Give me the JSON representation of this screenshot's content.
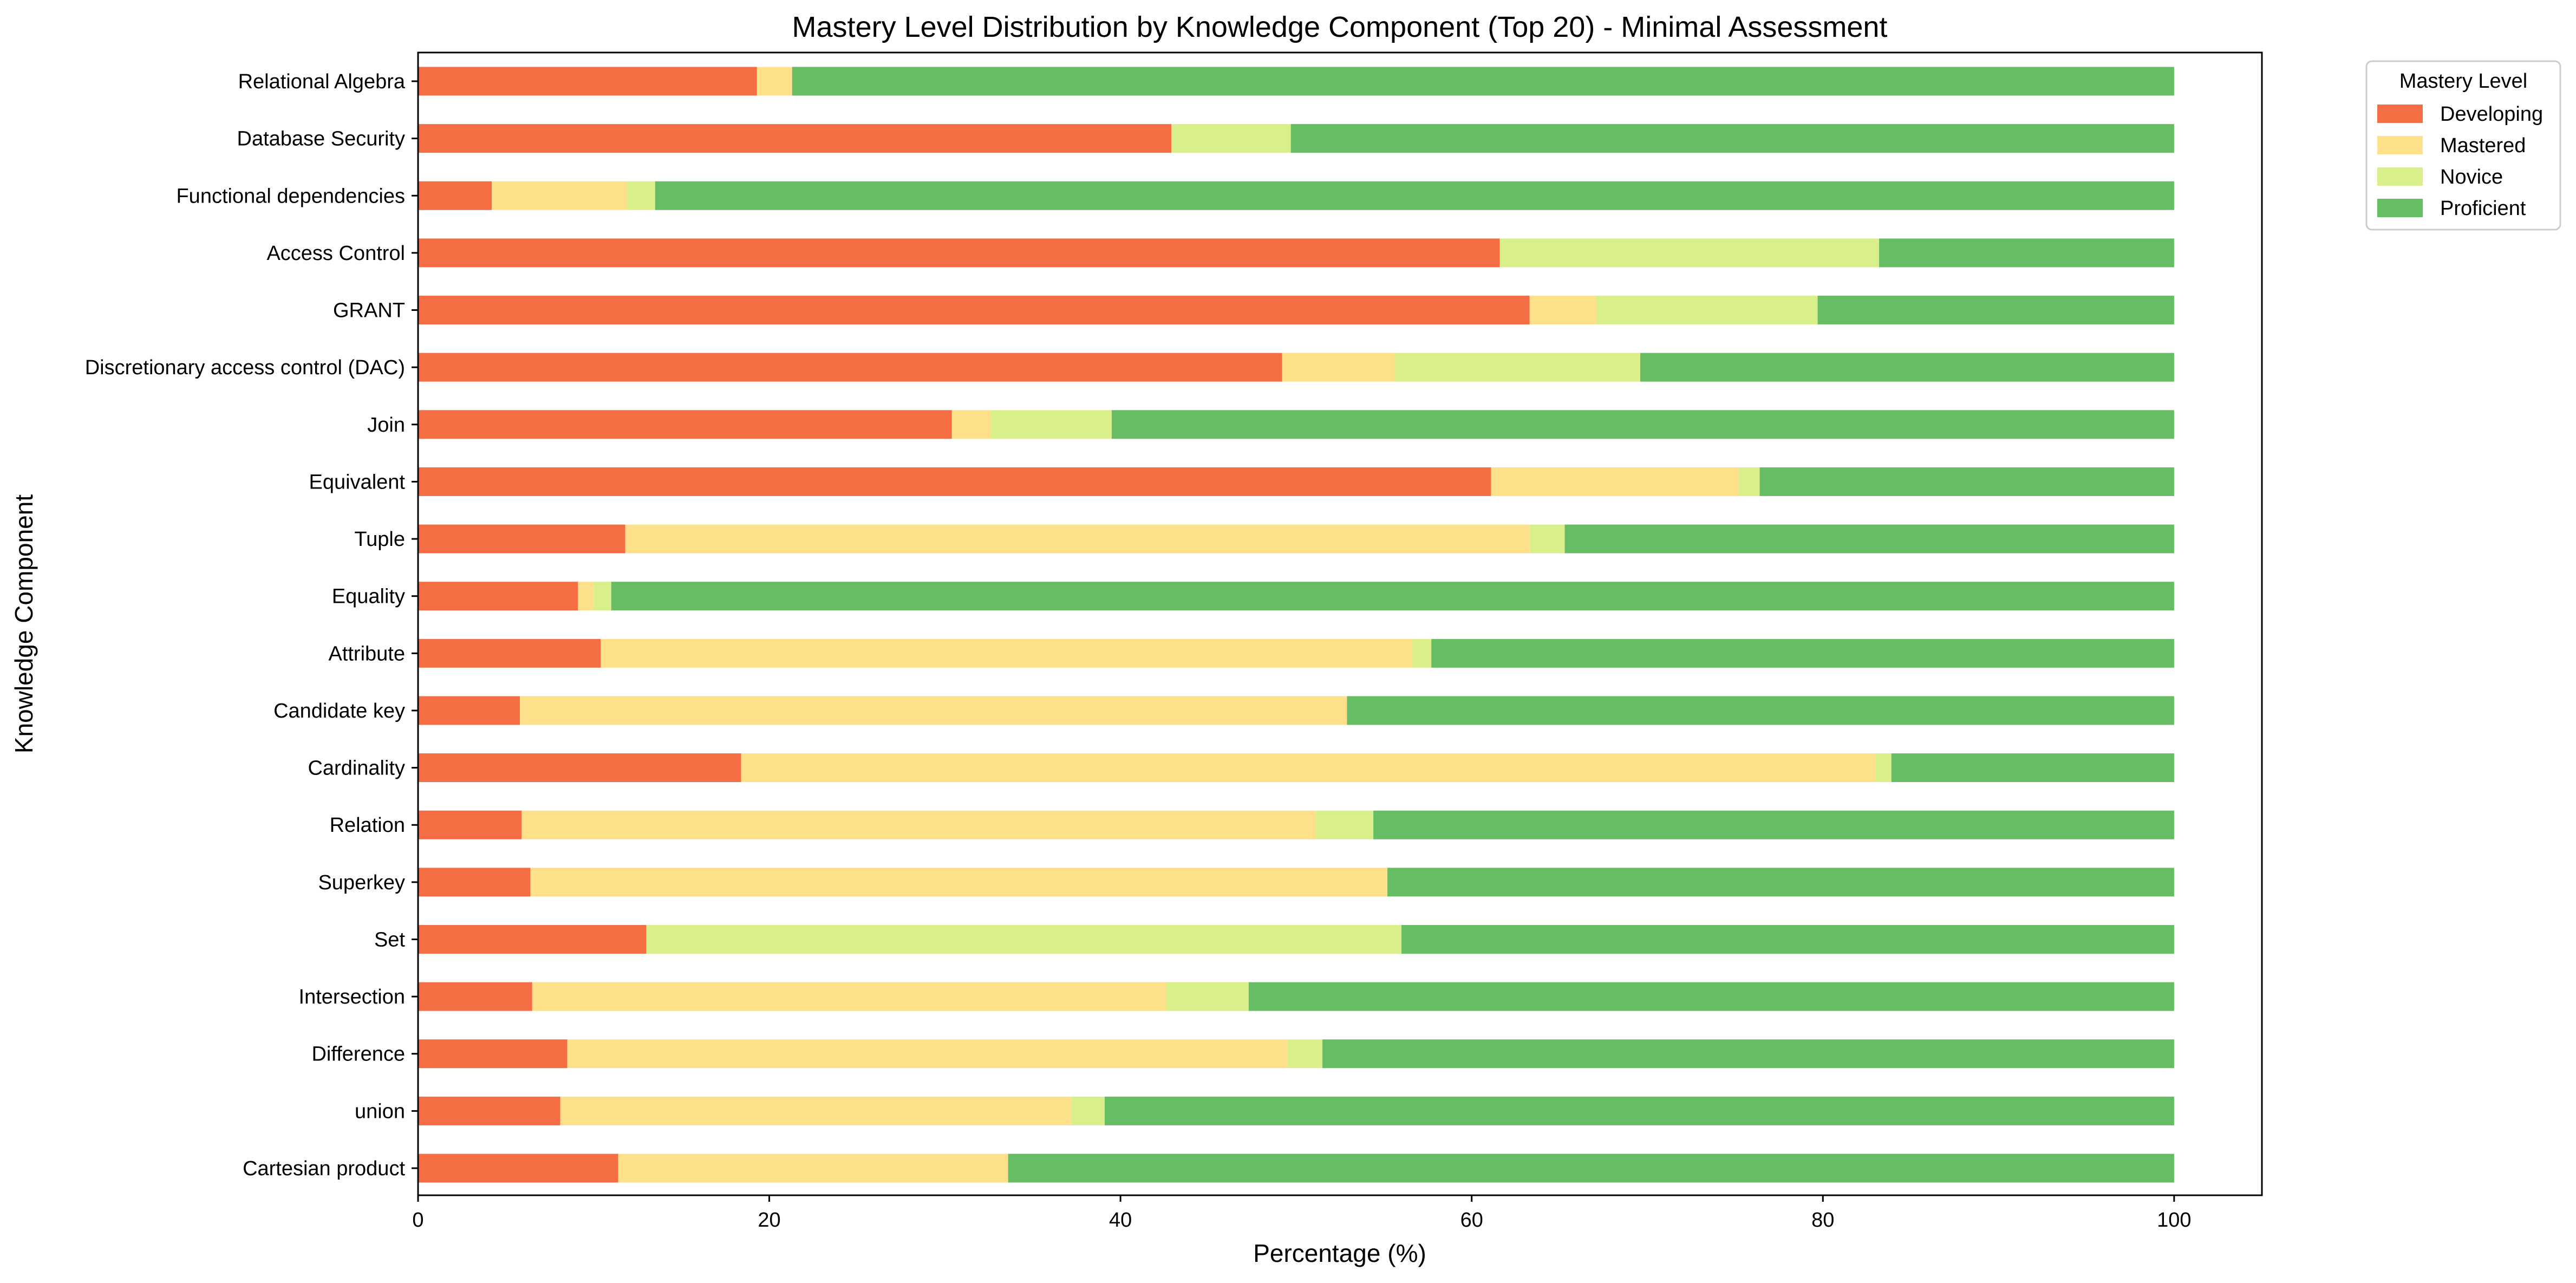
{
  "chart_data": {
    "type": "bar",
    "orientation": "horizontal",
    "stacked": true,
    "title": "Mastery Level Distribution by Knowledge Component (Top 20) - Minimal Assessment",
    "xlabel": "Percentage (%)",
    "ylabel": "Knowledge Component",
    "xlim": [
      0,
      105
    ],
    "xticks": [
      0,
      20,
      40,
      60,
      80,
      100
    ],
    "grid": false,
    "legend": {
      "title": "Mastery Level",
      "placement": "outside-top-right"
    },
    "categories": [
      "Relational Algebra",
      "Database Security",
      "Functional dependencies",
      "Access Control",
      "GRANT",
      "Discretionary access control (DAC)",
      "Join",
      "Equivalent",
      "Tuple",
      "Equality",
      "Attribute",
      "Candidate key",
      "Cardinality",
      "Relation",
      "Superkey",
      "Set",
      "Intersection",
      "Difference",
      "union",
      "Cartesian product"
    ],
    "series": [
      {
        "name": "Developing",
        "color": "#f46d43",
        "values": [
          19.3,
          42.9,
          4.2,
          61.6,
          63.3,
          49.2,
          30.4,
          61.1,
          11.8,
          9.1,
          10.4,
          5.8,
          18.4,
          5.9,
          6.4,
          13.0,
          6.5,
          8.5,
          8.1,
          11.4
        ]
      },
      {
        "name": "Mastered",
        "color": "#fee08b",
        "values": [
          2.0,
          0.0,
          7.7,
          0.0,
          3.8,
          6.4,
          2.2,
          14.1,
          51.5,
          0.9,
          46.2,
          47.1,
          64.6,
          45.2,
          48.8,
          0.0,
          36.1,
          41.0,
          29.1,
          22.2
        ]
      },
      {
        "name": "Novice",
        "color": "#d9ef8b",
        "values": [
          0.0,
          6.8,
          1.6,
          21.6,
          12.6,
          14.0,
          6.9,
          1.2,
          2.0,
          1.0,
          1.1,
          0.0,
          0.9,
          3.3,
          0.0,
          43.0,
          4.7,
          2.0,
          1.9,
          0.0
        ]
      },
      {
        "name": "Proficient",
        "color": "#66bd63",
        "values": [
          78.7,
          50.3,
          86.5,
          16.8,
          20.3,
          30.4,
          60.5,
          23.6,
          34.7,
          89.0,
          42.3,
          47.1,
          16.1,
          45.6,
          44.8,
          44.0,
          52.7,
          48.5,
          60.9,
          66.4
        ]
      }
    ]
  }
}
